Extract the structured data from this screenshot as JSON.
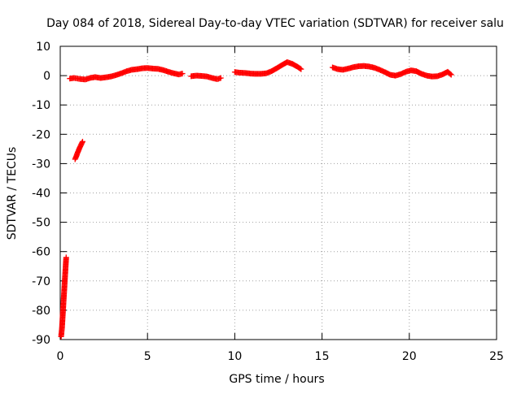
{
  "chart_data": {
    "type": "scatter",
    "title": "Day 084 of 2018, Sidereal Day-to-day VTEC variation (SDTVAR) for receiver salu",
    "xlabel": "GPS time / hours",
    "ylabel": "SDTVAR / TECUs",
    "xlim": [
      0,
      25
    ],
    "ylim": [
      -90,
      10
    ],
    "xticks": [
      0,
      5,
      10,
      15,
      20,
      25
    ],
    "yticks": [
      10,
      0,
      -10,
      -20,
      -30,
      -40,
      -50,
      -60,
      -70,
      -80,
      -90
    ],
    "xtick_labels": [
      "0",
      "5",
      "10",
      "15",
      "20",
      "25"
    ],
    "ytick_labels": [
      "10",
      "0",
      "-10",
      "-20",
      "-30",
      "-40",
      "-50",
      "-60",
      "-70",
      "-80",
      "-90"
    ],
    "grid": true,
    "marker": "+",
    "color": "#ff0000",
    "segments": [
      {
        "name": "initial-drop",
        "x": [
          0.05,
          0.1,
          0.14,
          0.18,
          0.22,
          0.26,
          0.3,
          0.34
        ],
        "y": [
          -89,
          -86,
          -82,
          -78,
          -74,
          -70,
          -66,
          -62
        ]
      },
      {
        "name": "early-rise",
        "x": [
          0.85,
          0.92,
          0.98,
          1.05,
          1.12,
          1.2,
          1.28
        ],
        "y": [
          -28.5,
          -27.5,
          -26.5,
          -25.5,
          -24.5,
          -23.5,
          -22.5
        ]
      },
      {
        "name": "block-1",
        "x": [
          0.55,
          0.8,
          1.0,
          1.2,
          1.45,
          1.7,
          2.0,
          2.3,
          2.6,
          2.9,
          3.2,
          3.5,
          3.8,
          4.1,
          4.4,
          4.7,
          5.0,
          5.3,
          5.6,
          5.9,
          6.2,
          6.5,
          6.8,
          7.0
        ],
        "y": [
          -1.0,
          -0.8,
          -1.0,
          -1.2,
          -1.3,
          -0.8,
          -0.5,
          -0.8,
          -0.6,
          -0.3,
          0.2,
          0.8,
          1.5,
          2.0,
          2.2,
          2.5,
          2.6,
          2.4,
          2.3,
          1.9,
          1.3,
          0.8,
          0.4,
          0.7
        ]
      },
      {
        "name": "block-2",
        "x": [
          7.5,
          7.8,
          8.1,
          8.4,
          8.7,
          9.0,
          9.2
        ],
        "y": [
          -0.2,
          0.0,
          -0.1,
          -0.3,
          -0.8,
          -1.2,
          -0.8
        ]
      },
      {
        "name": "block-3",
        "x": [
          10.0,
          10.3,
          10.6,
          10.9,
          11.2,
          11.5,
          11.8,
          12.1,
          12.4,
          12.7,
          13.0,
          13.3,
          13.6,
          13.8
        ],
        "y": [
          1.2,
          1.0,
          0.9,
          0.7,
          0.6,
          0.6,
          0.8,
          1.5,
          2.5,
          3.6,
          4.6,
          4.0,
          3.0,
          2.2
        ]
      },
      {
        "name": "block-4",
        "x": [
          15.6,
          15.9,
          16.2,
          16.5,
          16.8,
          17.1,
          17.4,
          17.7,
          18.0,
          18.3,
          18.6,
          18.9,
          19.2,
          19.5,
          19.8,
          20.1,
          20.4,
          20.7,
          21.0,
          21.3,
          21.6,
          21.9,
          22.2,
          22.4
        ],
        "y": [
          2.8,
          2.2,
          2.0,
          2.4,
          2.9,
          3.2,
          3.3,
          3.1,
          2.7,
          2.0,
          1.2,
          0.3,
          0.0,
          0.5,
          1.3,
          1.8,
          1.5,
          0.6,
          0.0,
          -0.3,
          -0.2,
          0.4,
          1.3,
          0.3
        ]
      }
    ]
  }
}
